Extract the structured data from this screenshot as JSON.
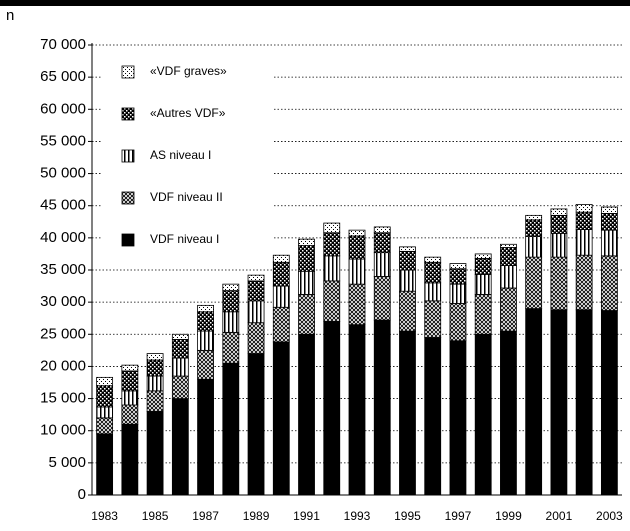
{
  "chart_data": {
    "type": "stacked_bar",
    "ylabel": "n",
    "categories": [
      "1983",
      null,
      "1985",
      null,
      "1987",
      null,
      "1989",
      null,
      "1991",
      null,
      "1993",
      null,
      "1995",
      null,
      "1997",
      null,
      "1999",
      null,
      "2001",
      null,
      "2003"
    ],
    "series": [
      {
        "name": "VDF niveau I",
        "color": "#000000",
        "pattern": "solid",
        "values": [
          9500,
          11000,
          13000,
          15000,
          18000,
          20500,
          22000,
          23800,
          25000,
          27000,
          26500,
          27200,
          25500,
          24500,
          24000,
          25000,
          25500,
          29000,
          28800,
          28800,
          28700
        ]
      },
      {
        "name": "VDF niveau II",
        "color": "#9a9a9a",
        "pattern": "crosshatch",
        "values": [
          2500,
          3000,
          3200,
          3500,
          4500,
          4800,
          4800,
          5400,
          6200,
          6300,
          6300,
          6800,
          6200,
          5700,
          5800,
          6200,
          6700,
          8000,
          8200,
          8500,
          8500
        ]
      },
      {
        "name": "AS niveau I",
        "color": "#ffffff",
        "pattern": "stripes",
        "values": [
          1700,
          2200,
          2300,
          2800,
          3000,
          3200,
          3400,
          3300,
          3600,
          3900,
          3900,
          3700,
          3300,
          2800,
          3000,
          3100,
          3500,
          3200,
          3700,
          4000,
          4000
        ]
      },
      {
        "name": "«Autres VDF»",
        "color": "#444444",
        "pattern": "checker",
        "values": [
          3300,
          3100,
          2500,
          2900,
          3000,
          3300,
          3100,
          3700,
          4000,
          3600,
          3600,
          3100,
          2900,
          3200,
          2400,
          2500,
          2800,
          2600,
          2800,
          2700,
          2600
        ]
      },
      {
        "name": "«VDF graves»",
        "color": "#dddddd",
        "pattern": "dots",
        "values": [
          1300,
          900,
          1000,
          800,
          1000,
          1000,
          900,
          1100,
          1000,
          1500,
          900,
          900,
          700,
          800,
          800,
          700,
          500,
          700,
          1000,
          1200,
          1000
        ]
      }
    ],
    "ylim": [
      0,
      70000
    ],
    "yticks": [
      0,
      {
        "value": 5000,
        "label": "5 000"
      },
      {
        "value": 10000,
        "label": "10 000"
      },
      {
        "value": 15000,
        "label": "15 000"
      },
      {
        "value": 20000,
        "label": "20 000"
      },
      {
        "value": 25000,
        "label": "25 000"
      },
      {
        "value": 30000,
        "label": "30 000"
      },
      {
        "value": 35000,
        "label": "35 000"
      },
      {
        "value": 40000,
        "label": "40 000"
      },
      {
        "value": 45000,
        "label": "45 000"
      },
      {
        "value": 50000,
        "label": "50 000"
      },
      {
        "value": 55000,
        "label": "55 000"
      },
      {
        "value": 60000,
        "label": "60 000"
      },
      {
        "value": 65000,
        "label": "65 000"
      },
      {
        "value": 70000,
        "label": "70 000"
      }
    ],
    "grid": true,
    "legend": "upper-left"
  }
}
